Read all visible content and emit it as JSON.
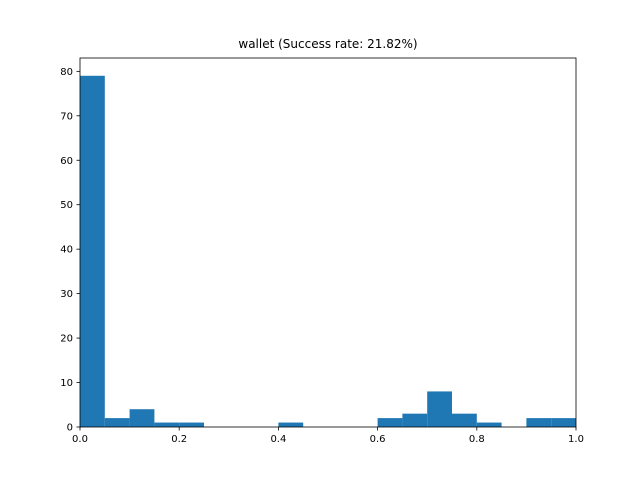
{
  "chart_data": {
    "type": "bar",
    "title": "wallet (Success rate: 21.82%)",
    "xlabel": "",
    "ylabel": "",
    "xlim": [
      0,
      1
    ],
    "ylim": [
      0,
      83
    ],
    "grid": false,
    "bar_color": "#1f77b4",
    "bins": [
      {
        "x0": 0.0,
        "x1": 0.05,
        "value": 79
      },
      {
        "x0": 0.05,
        "x1": 0.1,
        "value": 2
      },
      {
        "x0": 0.1,
        "x1": 0.15,
        "value": 4
      },
      {
        "x0": 0.15,
        "x1": 0.2,
        "value": 1
      },
      {
        "x0": 0.2,
        "x1": 0.25,
        "value": 1
      },
      {
        "x0": 0.25,
        "x1": 0.3,
        "value": 0
      },
      {
        "x0": 0.3,
        "x1": 0.35,
        "value": 0
      },
      {
        "x0": 0.35,
        "x1": 0.4,
        "value": 0
      },
      {
        "x0": 0.4,
        "x1": 0.45,
        "value": 1
      },
      {
        "x0": 0.45,
        "x1": 0.5,
        "value": 0
      },
      {
        "x0": 0.5,
        "x1": 0.55,
        "value": 0
      },
      {
        "x0": 0.55,
        "x1": 0.6,
        "value": 0
      },
      {
        "x0": 0.6,
        "x1": 0.65,
        "value": 2
      },
      {
        "x0": 0.65,
        "x1": 0.7,
        "value": 3
      },
      {
        "x0": 0.7,
        "x1": 0.75,
        "value": 8
      },
      {
        "x0": 0.75,
        "x1": 0.8,
        "value": 3
      },
      {
        "x0": 0.8,
        "x1": 0.85,
        "value": 1
      },
      {
        "x0": 0.85,
        "x1": 0.9,
        "value": 0
      },
      {
        "x0": 0.9,
        "x1": 0.95,
        "value": 2
      },
      {
        "x0": 0.95,
        "x1": 1.0,
        "value": 2
      }
    ],
    "x_ticks": [
      {
        "value": 0.0,
        "label": "0.0"
      },
      {
        "value": 0.2,
        "label": "0.2"
      },
      {
        "value": 0.4,
        "label": "0.4"
      },
      {
        "value": 0.6,
        "label": "0.6"
      },
      {
        "value": 0.8,
        "label": "0.8"
      },
      {
        "value": 1.0,
        "label": "1.0"
      }
    ],
    "y_ticks": [
      {
        "value": 0,
        "label": "0"
      },
      {
        "value": 10,
        "label": "10"
      },
      {
        "value": 20,
        "label": "20"
      },
      {
        "value": 30,
        "label": "30"
      },
      {
        "value": 40,
        "label": "40"
      },
      {
        "value": 50,
        "label": "50"
      },
      {
        "value": 60,
        "label": "60"
      },
      {
        "value": 70,
        "label": "70"
      },
      {
        "value": 80,
        "label": "80"
      }
    ]
  }
}
